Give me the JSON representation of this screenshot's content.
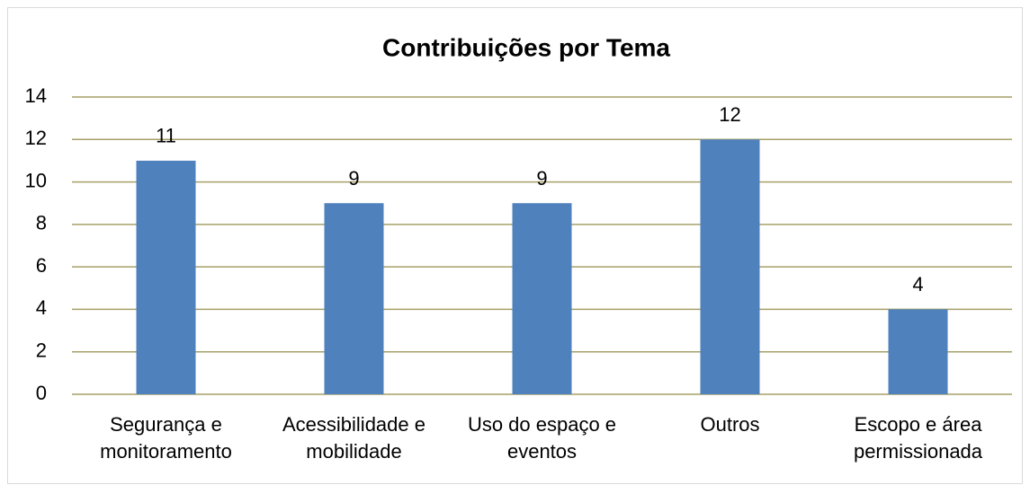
{
  "chart_data": {
    "type": "bar",
    "title": "Contribuições por Tema",
    "categories": [
      "Segurança e monitoramento",
      "Acessibilidade e mobilidade",
      "Uso do espaço e eventos",
      "Outros",
      "Escopo e área permissionada"
    ],
    "values": [
      11,
      9,
      9,
      12,
      4
    ],
    "color": "#4f81bd",
    "ylim": [
      0,
      14
    ],
    "yticks": [
      0,
      2,
      4,
      6,
      8,
      10,
      12,
      14
    ],
    "grid": true
  }
}
